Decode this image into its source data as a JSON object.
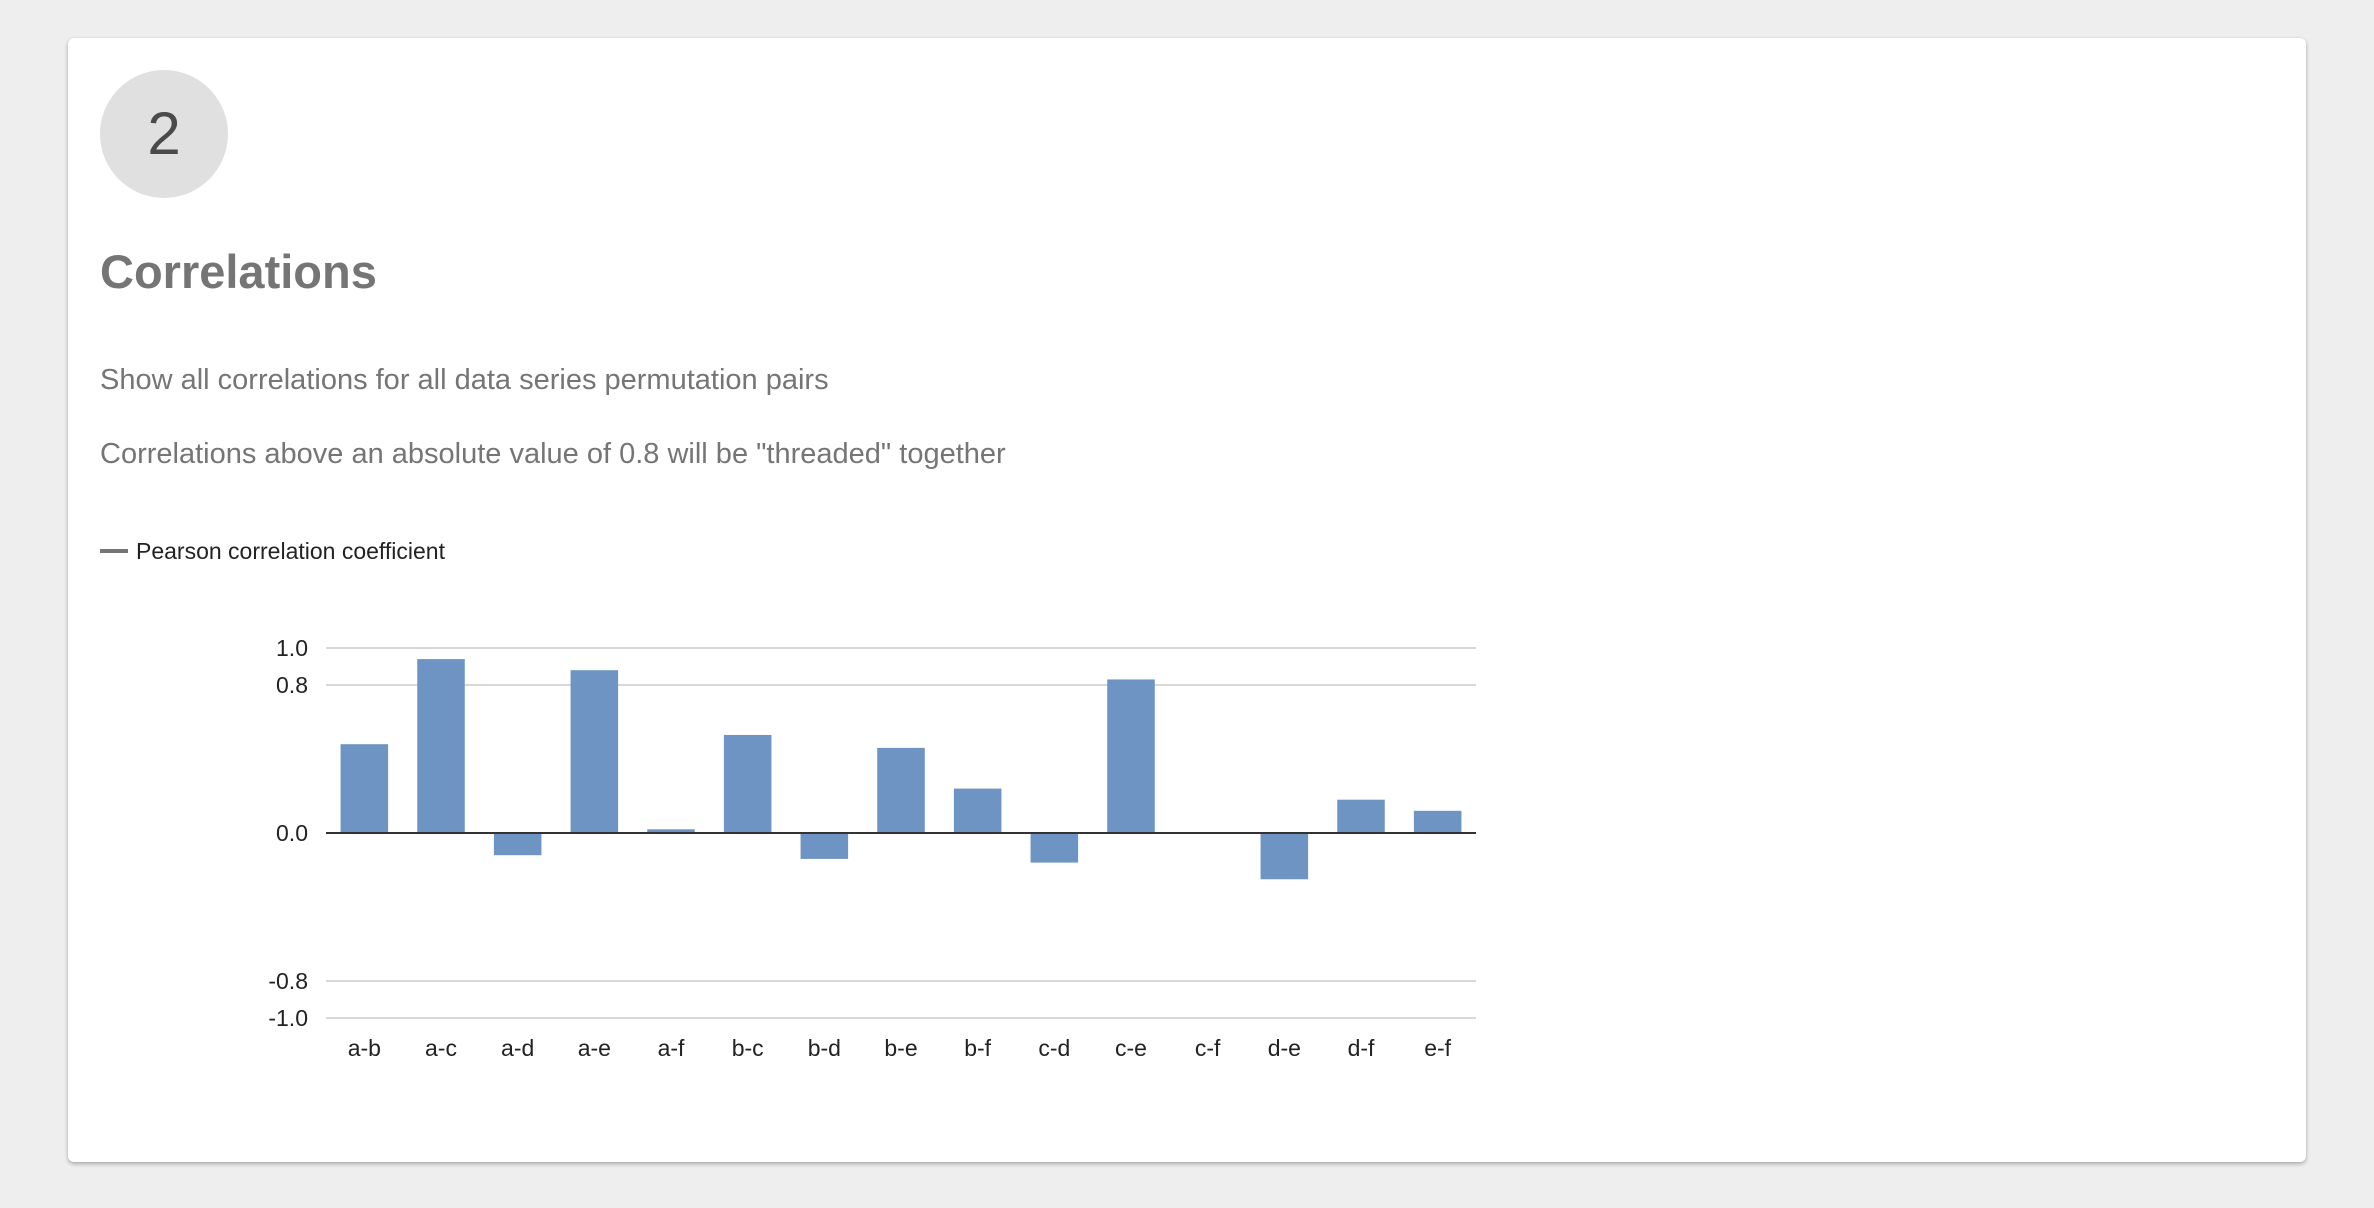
{
  "step": {
    "number": "2"
  },
  "section": {
    "title": "Correlations",
    "description": "Show all correlations for all data series permutation pairs",
    "threshold_note": "Correlations above an absolute value of 0.8 will be \"threaded\" together"
  },
  "chart_data": {
    "type": "bar",
    "categories": [
      "a-b",
      "a-c",
      "a-d",
      "a-e",
      "a-f",
      "b-c",
      "b-d",
      "b-e",
      "b-f",
      "c-d",
      "c-e",
      "c-f",
      "d-e",
      "d-f",
      "e-f"
    ],
    "series": [
      {
        "name": "Pearson correlation coefficient",
        "values": [
          0.48,
          0.94,
          -0.12,
          0.88,
          0.02,
          0.53,
          -0.14,
          0.46,
          0.24,
          -0.16,
          0.83,
          0.0,
          -0.25,
          0.18,
          0.12
        ]
      }
    ],
    "yticks": [
      "-1.0",
      "-0.8",
      "0.0",
      "0.8",
      "1.0"
    ],
    "ylim": [
      -1.0,
      1.0
    ],
    "grid": true,
    "legend": "top-left",
    "colors": {
      "bar": "#6d94c2",
      "grid": "#cccccc",
      "baseline": "#333333"
    }
  }
}
